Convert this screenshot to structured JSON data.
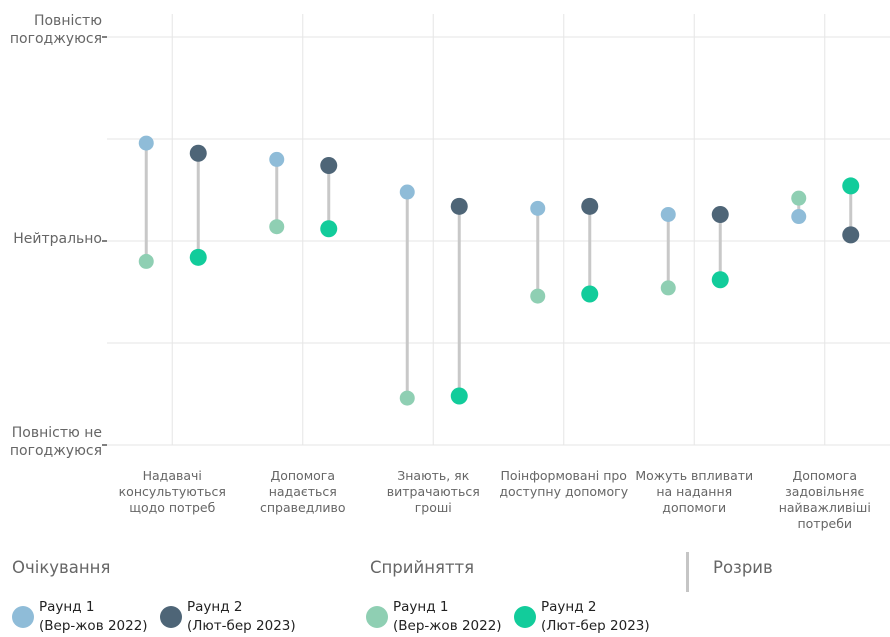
{
  "chart_data": {
    "type": "dumbbell",
    "y_scale_labels": {
      "top": "Повністю погоджуюся",
      "middle": "Нейтрально",
      "bottom": "Повністю не погоджуюся"
    },
    "ylim": [
      -1,
      1
    ],
    "categories": [
      "Надавачі консультуються щодо потреб",
      "Допомога надається справедливо",
      "Знають, як витрачаються гроші",
      "Поінформовані про доступну допомогу",
      "Можуть впливати на надання допомоги",
      "Допомога задовільняє найважливіші потреби"
    ],
    "series": [
      {
        "group": "Очікування",
        "round": "Раунд 1",
        "period": "(Вер-жов 2022)",
        "values": [
          0.48,
          0.4,
          0.24,
          0.16,
          0.13,
          0.12
        ]
      },
      {
        "group": "Сприйняття",
        "round": "Раунд 1",
        "period": "(Вер-жов 2022)",
        "values": [
          -0.1,
          0.07,
          -0.77,
          -0.27,
          -0.23,
          0.21
        ]
      },
      {
        "group": "Очікування",
        "round": "Раунд 2",
        "period": "(Лют-бер 2023)",
        "values": [
          0.43,
          0.37,
          0.17,
          0.17,
          0.13,
          0.03
        ]
      },
      {
        "group": "Сприйняття",
        "round": "Раунд 2",
        "period": "(Лют-бер 2023)",
        "values": [
          -0.08,
          0.06,
          -0.76,
          -0.26,
          -0.19,
          0.27
        ]
      }
    ],
    "colors": {
      "expect_r1": "#8fbcd8",
      "expect_r2": "#4e6577",
      "percep_r1": "#8fcfb3",
      "percep_r2": "#12cc9b",
      "connector": "#c8c8c8",
      "grid": "#e6e6e6"
    },
    "legend": {
      "expectations": "Очікування",
      "perception": "Сприйняття",
      "gap": "Розрив"
    }
  }
}
